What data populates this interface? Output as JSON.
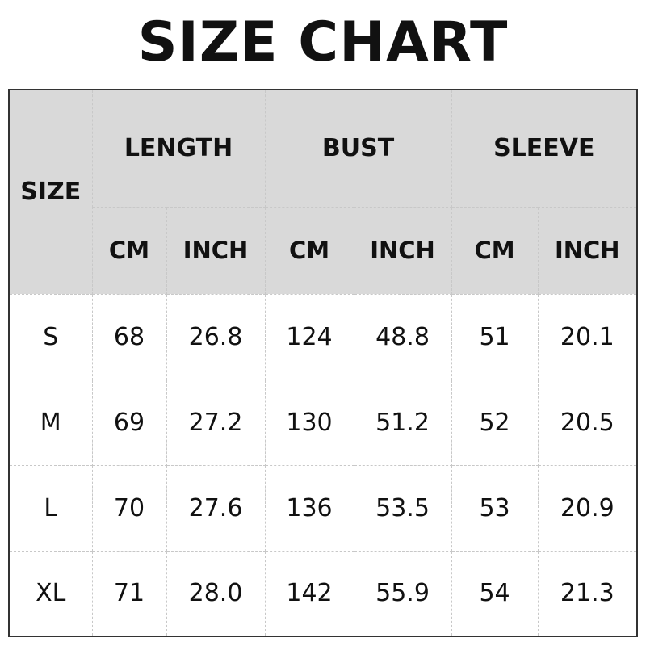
{
  "title": "SIZE CHART",
  "header": {
    "size": "SIZE",
    "groups": [
      "LENGTH",
      "BUST",
      "SLEEVE"
    ],
    "units": [
      "CM",
      "INCH",
      "CM",
      "INCH",
      "CM",
      "INCH"
    ]
  },
  "rows": [
    [
      "S",
      "68",
      "26.8",
      "124",
      "48.8",
      "51",
      "20.1"
    ],
    [
      "M",
      "69",
      "27.2",
      "130",
      "51.2",
      "52",
      "20.5"
    ],
    [
      "L",
      "70",
      "27.6",
      "136",
      "53.5",
      "53",
      "20.9"
    ],
    [
      "XL",
      "71",
      "28.0",
      "142",
      "55.9",
      "54",
      "21.3"
    ]
  ],
  "colors": {
    "header_bg": "#d9d9d9",
    "border": "#333333",
    "grid": "#c8c8c8"
  }
}
